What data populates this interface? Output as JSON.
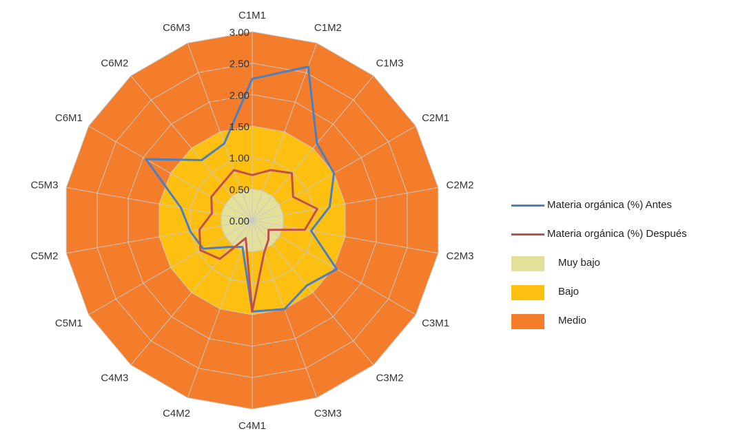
{
  "chart_data": {
    "type": "radar",
    "categories": [
      "C1M1",
      "C1M2",
      "C1M3",
      "C2M1",
      "C2M2",
      "C2M3",
      "C3M1",
      "C3M2",
      "C3M3",
      "C4M1",
      "C4M2",
      "C4M3",
      "C5M1",
      "C5M2",
      "C5M3",
      "C6M1",
      "C6M2",
      "C6M3"
    ],
    "ticks": [
      "0.00",
      "0.50",
      "1.00",
      "1.50",
      "2.00",
      "2.50",
      "3.00"
    ],
    "rlim": [
      0,
      3
    ],
    "grid": true,
    "legend_position": "right",
    "bands": [
      {
        "name": "Muy bajo",
        "from": 0,
        "to": 0.5,
        "color": "#e3e09a"
      },
      {
        "name": "Bajo",
        "from": 0.5,
        "to": 1.5,
        "color": "#fdc010"
      },
      {
        "name": "Medio",
        "from": 1.5,
        "to": 3.0,
        "color": "#f47d2b"
      }
    ],
    "series": [
      {
        "name": "Materia orgánica (%) Antes",
        "color": "#4a7fc1",
        "values": [
          2.25,
          2.6,
          1.6,
          1.5,
          1.25,
          0.95,
          1.55,
          1.35,
          1.5,
          1.45,
          0.45,
          0.55,
          0.9,
          1.0,
          1.15,
          1.95,
          1.25,
          1.3
        ]
      },
      {
        "name": "Materia orgánica (%) Después",
        "color": "#c0504d",
        "values": [
          0.72,
          0.85,
          0.98,
          0.75,
          1.05,
          0.85,
          0.3,
          0.4,
          0.55,
          1.45,
          0.3,
          0.8,
          0.95,
          0.85,
          0.65,
          0.75,
          0.75,
          0.85
        ]
      }
    ]
  }
}
